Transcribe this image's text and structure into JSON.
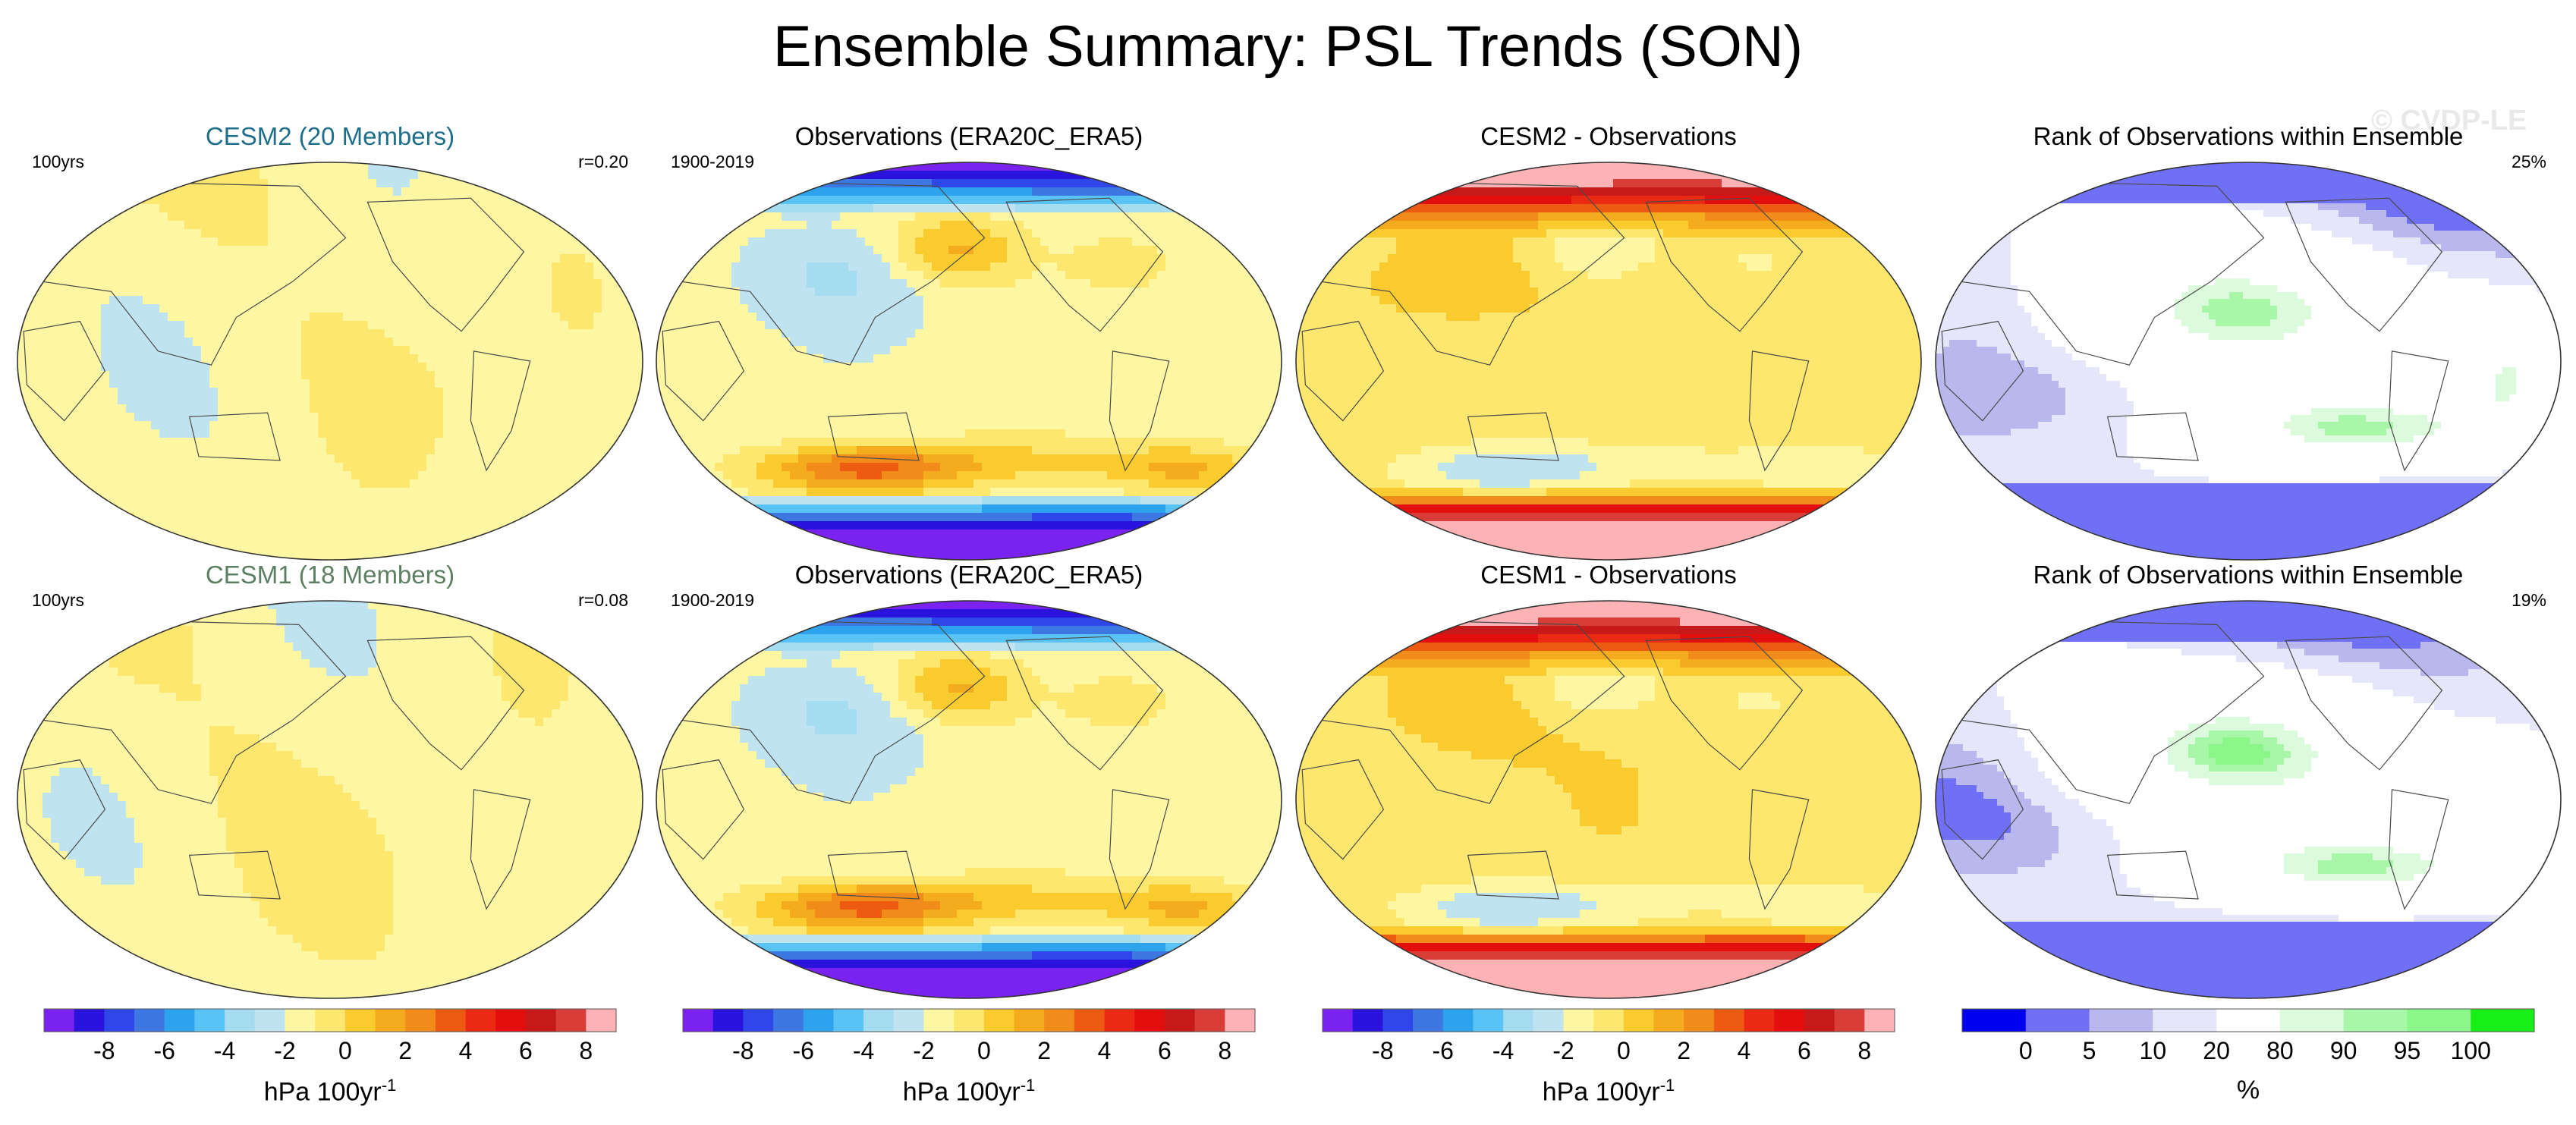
{
  "title": "Ensemble Summary: PSL Trends (SON)",
  "watermark": "© CVDP-LE",
  "colors": {
    "trend_scale": [
      "#7a23f0",
      "#2a14dd",
      "#2f46e8",
      "#3d78e2",
      "#2ca3ec",
      "#5ac3f5",
      "#a5dcef",
      "#bfe3f1",
      "#fdf7a4",
      "#fde76f",
      "#f9cb2f",
      "#f4ac1e",
      "#f18c1b",
      "#ed5b12",
      "#eb2a14",
      "#e20f0e",
      "#c61a1a",
      "#d83d37",
      "#fdb3b5"
    ],
    "rank_scale": [
      "#0000f0",
      "#7070f7",
      "#b8b8ee",
      "#e6e6fb",
      "#ffffff",
      "#dcfbdc",
      "#a8f6a8",
      "#8bf78b",
      "#18ef18"
    ],
    "coast": "#4a4a4a"
  },
  "chart_data": [
    {
      "type": "heatmap",
      "title": "CESM2 (20 Members)",
      "title_color": "#1f6e8c",
      "left_label": "100yrs",
      "right_label": "r=0.20",
      "field": "cesm2_mean",
      "colorbar": "trend"
    },
    {
      "type": "heatmap",
      "title": "Observations (ERA20C_ERA5)",
      "left_label": "1900-2019",
      "field": "obs",
      "colorbar": "trend"
    },
    {
      "type": "heatmap",
      "title": "CESM2 - Observations",
      "field": "cesm2_diff",
      "colorbar": "trend"
    },
    {
      "type": "heatmap",
      "title": "Rank of Observations within Ensemble",
      "right_label": "25%",
      "field": "cesm2_rank",
      "colorbar": "rank"
    },
    {
      "type": "heatmap",
      "title": "CESM1 (18 Members)",
      "title_color": "#5d7f64",
      "left_label": "100yrs",
      "right_label": "r=0.08",
      "field": "cesm1_mean",
      "colorbar": "trend"
    },
    {
      "type": "heatmap",
      "title": "Observations (ERA20C_ERA5)",
      "left_label": "1900-2019",
      "field": "obs",
      "colorbar": "trend"
    },
    {
      "type": "heatmap",
      "title": "CESM1 - Observations",
      "field": "cesm1_diff",
      "colorbar": "trend"
    },
    {
      "type": "heatmap",
      "title": "Rank of Observations within Ensemble",
      "right_label": "19%",
      "field": "cesm1_rank",
      "colorbar": "rank"
    }
  ],
  "colorbars": [
    {
      "kind": "trend",
      "tick_labels": [
        "-8",
        "-6",
        "-4",
        "-2",
        "0",
        "2",
        "4",
        "6",
        "8"
      ],
      "label": "hPa 100yr",
      "label_sup": "-1"
    },
    {
      "kind": "trend",
      "tick_labels": [
        "-8",
        "-6",
        "-4",
        "-2",
        "0",
        "2",
        "4",
        "6",
        "8"
      ],
      "label": "hPa 100yr",
      "label_sup": "-1"
    },
    {
      "kind": "trend",
      "tick_labels": [
        "-8",
        "-6",
        "-4",
        "-2",
        "0",
        "2",
        "4",
        "6",
        "8"
      ],
      "label": "hPa 100yr",
      "label_sup": "-1"
    },
    {
      "kind": "rank",
      "tick_labels": [
        "0",
        "5",
        "10",
        "20",
        "80",
        "90",
        "95",
        "100"
      ],
      "label": "%"
    }
  ]
}
